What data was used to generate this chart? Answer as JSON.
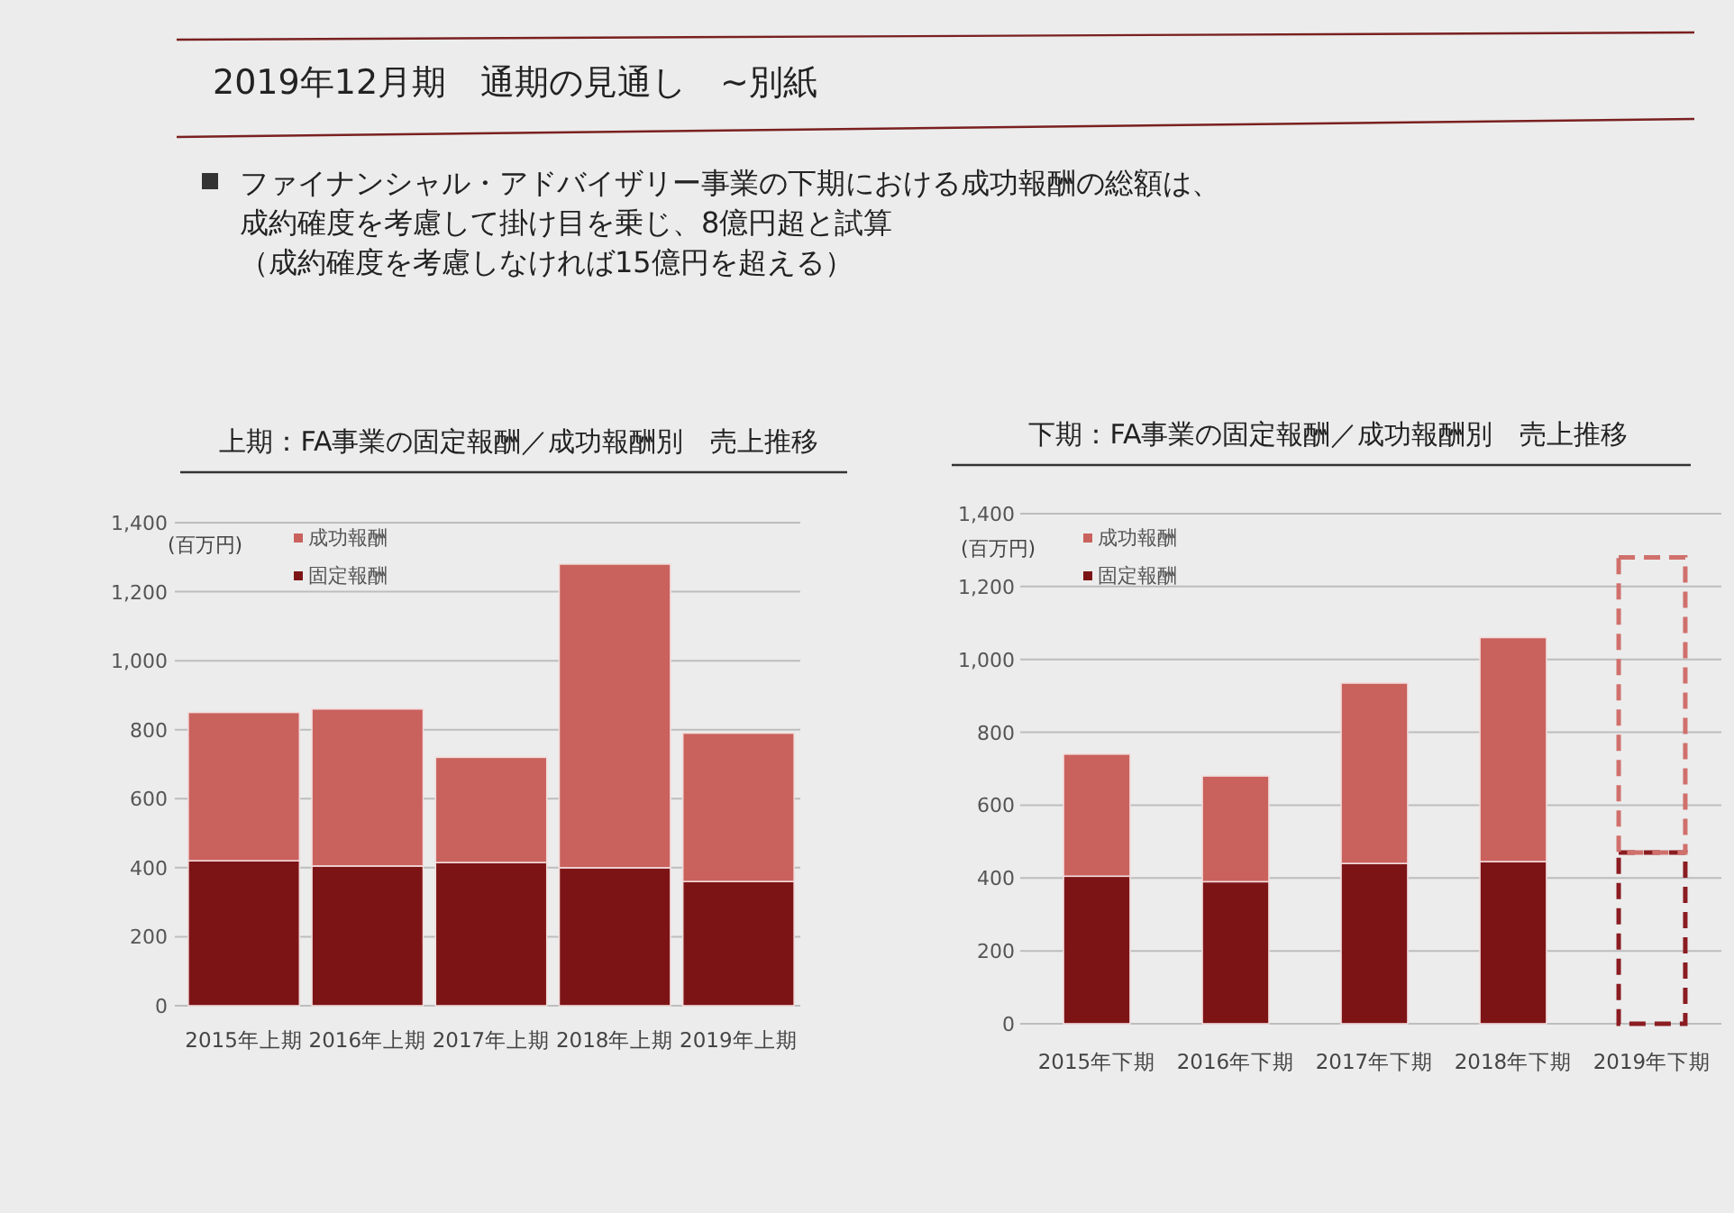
{
  "chart_data": [
    {
      "type": "other",
      "title": "2019年12月期　通期の見通し　~別紙",
      "annotations": [
        "ファイナンシャル・アドバイザリー事業の下期における成功報酬の総額は、",
        "成約確度を考慮して掛け目を乗じ、8億円超と試算",
        "（成約確度を考慮しなければ15億円を超える）"
      ]
    },
    {
      "type": "bar",
      "title": "上期：FA事業の固定報酬／成功報酬別　売上推移",
      "ylabel": "(百万円)",
      "categories": [
        "2015年上期",
        "2016年上期",
        "2017年上期",
        "2018年上期",
        "2019年上期"
      ],
      "stacked": true,
      "series": [
        {
          "name": "固定報酬",
          "color": "#7c1416",
          "values": [
            420,
            405,
            415,
            400,
            360
          ]
        },
        {
          "name": "成功報酬",
          "color": "#c9615d",
          "values": [
            430,
            455,
            305,
            880,
            430
          ]
        }
      ],
      "ylim": [
        0,
        1400
      ],
      "yticks": [
        0,
        200,
        400,
        600,
        800,
        {
          "value": 1000,
          "label": "1,000"
        },
        {
          "value": 1200,
          "label": "1,200"
        },
        {
          "value": 1400,
          "label": "1,400"
        }
      ],
      "grid": "y",
      "legend": "top left"
    },
    {
      "type": "bar",
      "title": "下期：FA事業の固定報酬／成功報酬別　売上推移",
      "ylabel": "(百万円)",
      "categories": [
        "2015年下期",
        "2016年下期",
        "2017年下期",
        "2018年下期",
        "2019年下期"
      ],
      "stacked": true,
      "series": [
        {
          "name": "固定報酬",
          "color": "#7c1416",
          "values": [
            405,
            390,
            440,
            445,
            null
          ]
        },
        {
          "name": "成功報酬",
          "color": "#c9615d",
          "values": [
            335,
            290,
            495,
            615,
            null
          ]
        },
        {
          "color": "#8a1c22",
          "line_style": "dashed",
          "values": [
            null,
            null,
            null,
            null,
            470
          ]
        },
        {
          "color": "#d0706c",
          "line_style": "dashed",
          "values": [
            null,
            null,
            null,
            null,
            810
          ]
        }
      ],
      "ylim": [
        0,
        1400
      ],
      "yticks": [
        0,
        200,
        400,
        600,
        800,
        {
          "value": 1000,
          "label": "1,000"
        },
        {
          "value": 1200,
          "label": "1,200"
        },
        {
          "value": 1400,
          "label": "1,400"
        }
      ],
      "grid": "y",
      "legend": "top left"
    }
  ]
}
